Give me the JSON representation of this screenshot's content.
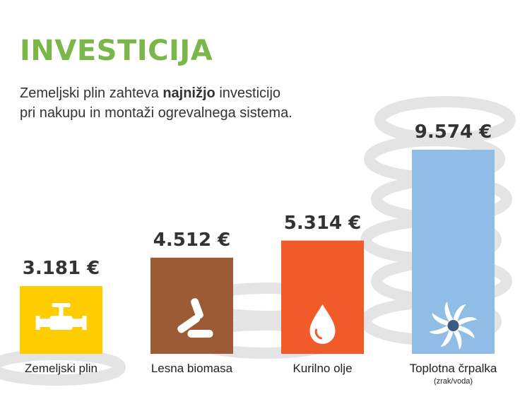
{
  "header": {
    "title": "INVESTICIJA",
    "subtitle_pre": "Zemeljski plin zahteva ",
    "subtitle_bold": "najnižjo",
    "subtitle_post": " investicijo",
    "subtitle_line2": "pri nakupu in montaži ogrevalnega sistema."
  },
  "colors": {
    "title": "#7ab648",
    "coins": "#e4e4e4",
    "text": "#333333"
  },
  "chart_data": {
    "type": "bar",
    "title": "INVESTICIJA",
    "categories": [
      "Zemeljski plin",
      "Lesna biomasa",
      "Kurilno olje",
      "Toplotna črpalka"
    ],
    "category_sublabels": [
      "",
      "",
      "",
      "(zrak/voda)"
    ],
    "values": [
      3181,
      4512,
      5314,
      9574
    ],
    "value_labels": [
      "3.181 €",
      "4.512 €",
      "5.314 €",
      "9.574 €"
    ],
    "unit": "€",
    "bar_colors": [
      "#ffcc00",
      "#9c5b35",
      "#f15a29",
      "#8fbde6"
    ],
    "icons": [
      "gas-valve-icon",
      "wood-pellets-icon",
      "oil-drop-icon",
      "fan-icon"
    ],
    "ylim": [
      0,
      9574
    ],
    "grid": false,
    "legend": "none"
  }
}
